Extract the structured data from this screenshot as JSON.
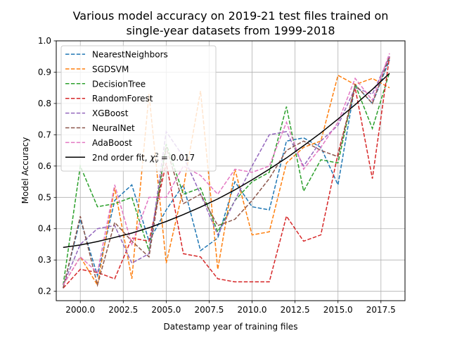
{
  "chart_data": {
    "type": "line",
    "title": "Various model accuracy on 2019-21 test files trained on",
    "subtitle": "single-year datasets from 1999-2018",
    "xlabel": "Datestamp year of training files",
    "ylabel": "Model Accuracy",
    "xlim": [
      1998.6,
      2018.9
    ],
    "ylim": [
      0.17,
      1.0
    ],
    "xticks": [
      2000.0,
      2002.5,
      2005.0,
      2007.5,
      2010.0,
      2012.5,
      2015.0,
      2017.5
    ],
    "xtick_labels": [
      "2000.0",
      "2002.5",
      "2005.0",
      "2007.5",
      "2010.0",
      "2012.5",
      "2015.0",
      "2017.5"
    ],
    "yticks": [
      0.2,
      0.3,
      0.4,
      0.5,
      0.6,
      0.7,
      0.8,
      0.9,
      1.0
    ],
    "ytick_labels": [
      "0.2",
      "0.3",
      "0.4",
      "0.5",
      "0.6",
      "0.7",
      "0.8",
      "0.9",
      "1.0"
    ],
    "grid": true,
    "legend_position": "top-left",
    "x": [
      1999,
      2000,
      2001,
      2002,
      2003,
      2004,
      2005,
      2006,
      2007,
      2008,
      2009,
      2010,
      2011,
      2012,
      2013,
      2014,
      2015,
      2016,
      2017,
      2018
    ],
    "series": [
      {
        "name": "NearestNeighbors",
        "color": "#1f77b4",
        "style": "dashed",
        "values": [
          0.21,
          0.43,
          0.25,
          0.49,
          0.54,
          0.36,
          0.46,
          0.54,
          0.33,
          0.37,
          0.55,
          0.47,
          0.46,
          0.68,
          0.69,
          0.66,
          0.54,
          0.86,
          0.8,
          0.94
        ]
      },
      {
        "name": "SGDSVM",
        "color": "#ff7f0e",
        "style": "dashed",
        "values": [
          0.22,
          0.31,
          0.22,
          0.53,
          0.24,
          0.83,
          0.29,
          0.53,
          0.84,
          0.27,
          0.59,
          0.38,
          0.39,
          0.61,
          0.66,
          0.68,
          0.89,
          0.86,
          0.88,
          0.85
        ]
      },
      {
        "name": "DecisionTree",
        "color": "#2ca02c",
        "style": "dashed",
        "values": [
          0.22,
          0.6,
          0.47,
          0.48,
          0.5,
          0.33,
          0.67,
          0.51,
          0.53,
          0.39,
          0.49,
          0.55,
          0.58,
          0.79,
          0.52,
          0.62,
          0.61,
          0.86,
          0.72,
          0.9
        ]
      },
      {
        "name": "RandomForest",
        "color": "#d62728",
        "style": "dashed",
        "values": [
          0.21,
          0.27,
          0.26,
          0.24,
          0.37,
          0.36,
          0.61,
          0.32,
          0.31,
          0.24,
          0.23,
          0.23,
          0.23,
          0.44,
          0.36,
          0.38,
          0.64,
          0.85,
          0.56,
          0.95
        ]
      },
      {
        "name": "XGBoost",
        "color": "#9467bd",
        "style": "dashed",
        "values": [
          0.22,
          0.35,
          0.4,
          0.41,
          0.29,
          0.32,
          0.71,
          0.63,
          0.51,
          0.38,
          0.49,
          0.6,
          0.7,
          0.71,
          0.6,
          0.68,
          0.73,
          0.85,
          0.83,
          0.95
        ]
      },
      {
        "name": "NeuralNet",
        "color": "#8c564b",
        "style": "dashed",
        "values": [
          0.21,
          0.44,
          0.22,
          0.42,
          0.36,
          0.31,
          0.66,
          0.48,
          0.51,
          0.41,
          0.43,
          0.49,
          0.56,
          0.65,
          0.68,
          0.65,
          0.63,
          0.86,
          0.8,
          0.95
        ]
      },
      {
        "name": "AdaBoost",
        "color": "#e377c2",
        "style": "dashed",
        "values": [
          0.22,
          0.31,
          0.26,
          0.54,
          0.35,
          0.5,
          0.5,
          0.6,
          0.57,
          0.51,
          0.59,
          0.58,
          0.6,
          0.74,
          0.59,
          0.66,
          0.74,
          0.88,
          0.81,
          0.96
        ]
      },
      {
        "name": "2nd order fit, $\\chi^2_\\nu = 0.017$",
        "color": "#000000",
        "style": "solid",
        "values": [
          0.34,
          0.348,
          0.359,
          0.372,
          0.386,
          0.403,
          0.423,
          0.445,
          0.469,
          0.495,
          0.524,
          0.556,
          0.59,
          0.626,
          0.665,
          0.706,
          0.75,
          0.796,
          0.845,
          0.896
        ]
      }
    ]
  }
}
